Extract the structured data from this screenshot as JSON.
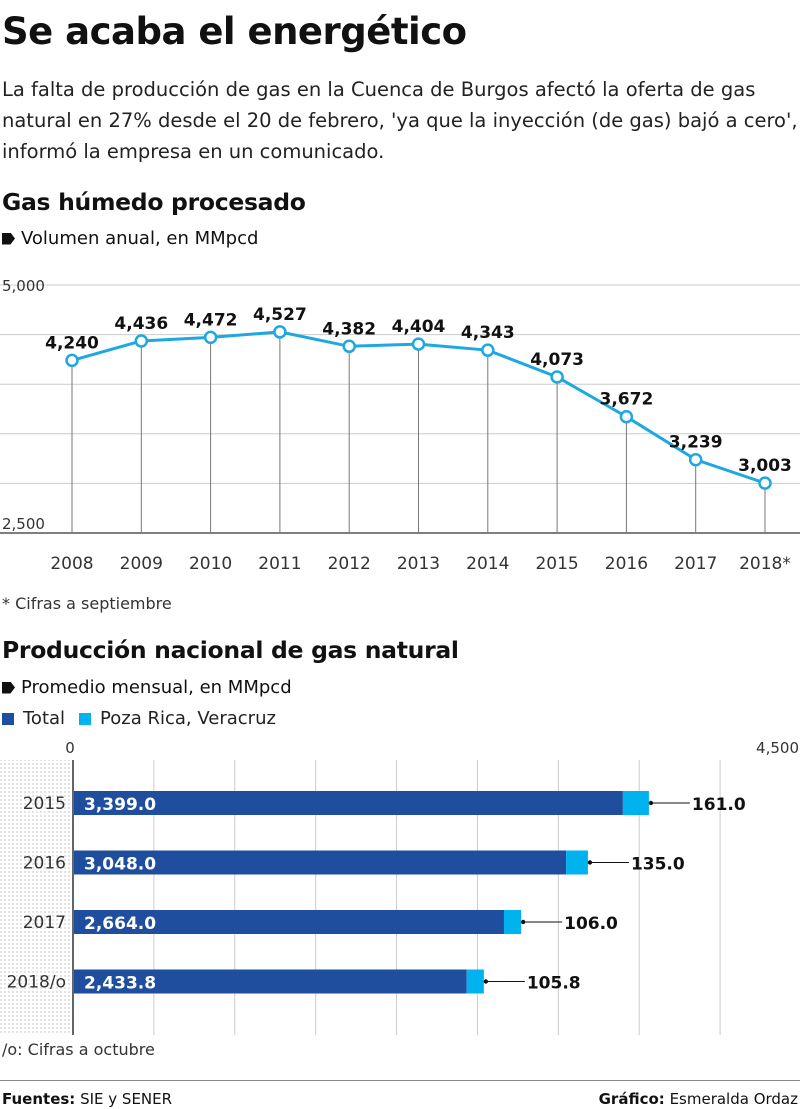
{
  "header": {
    "title": "Se acaba el energético",
    "intro": "La falta de producción de gas en la Cuenca de Burgos afectó la oferta de gas natural en 27% desde el 20 de febrero, 'ya que la inyección (de gas) bajó a cero', informó la empresa en un comunicado."
  },
  "chart1": {
    "title": "Gas húmedo procesado",
    "subtitle": "Volumen anual, en MMpcd",
    "note": "* Cifras a septiembre"
  },
  "chart2": {
    "title": "Producción nacional de gas natural",
    "subtitle": "Promedio mensual, en MMpcd",
    "legend": [
      {
        "label": "Total",
        "color": "#1f4e9e"
      },
      {
        "label": "Poza Rica, Veracruz",
        "color": "#00b3ee"
      }
    ],
    "note": "/o: Cifras a octubre"
  },
  "footer": {
    "sources_label": "Fuentes:",
    "sources": "SIE y SENER",
    "credit_label": "Gráfico:",
    "credit": "Esmeralda Ordaz"
  },
  "colors": {
    "line": "#1ea8e0",
    "total": "#1f4e9e",
    "poza_rica": "#00b3ee",
    "grid": "#cccccc"
  },
  "chart_data": [
    {
      "type": "line",
      "title": "Gas húmedo procesado",
      "subtitle": "Volumen anual, en MMpcd",
      "x": [
        "2008",
        "2009",
        "2010",
        "2011",
        "2012",
        "2013",
        "2014",
        "2015",
        "2016",
        "2017",
        "2018*"
      ],
      "values": [
        4240,
        4436,
        4472,
        4527,
        4382,
        4404,
        4343,
        4073,
        3672,
        3239,
        3003
      ],
      "value_labels": [
        "4,240",
        "4,436",
        "4,472",
        "4,527",
        "4,382",
        "4,404",
        "4,343",
        "4,073",
        "3,672",
        "3,239",
        "3,003"
      ],
      "ylim": [
        2500,
        5000
      ],
      "ytick_labels": [
        "2,500",
        "5,000"
      ],
      "grid": true
    },
    {
      "type": "bar",
      "orientation": "horizontal",
      "stacked": true,
      "title": "Producción nacional de gas natural",
      "subtitle": "Promedio mensual, en MMpcd",
      "categories": [
        "2015",
        "2016",
        "2017",
        "2018/o"
      ],
      "series": [
        {
          "name": "Total",
          "values": [
            3399.0,
            3048.0,
            2664.0,
            2433.8
          ],
          "labels": [
            "3,399.0",
            "3,048.0",
            "2,664.0",
            "2,433.8"
          ]
        },
        {
          "name": "Poza Rica, Veracruz",
          "values": [
            161.0,
            135.0,
            106.0,
            105.8
          ],
          "labels": [
            "161.0",
            "135.0",
            "106.0",
            "105.8"
          ]
        }
      ],
      "xlim": [
        0,
        4500
      ],
      "xtick_labels": [
        "0",
        "4,500"
      ],
      "grid": true
    }
  ]
}
